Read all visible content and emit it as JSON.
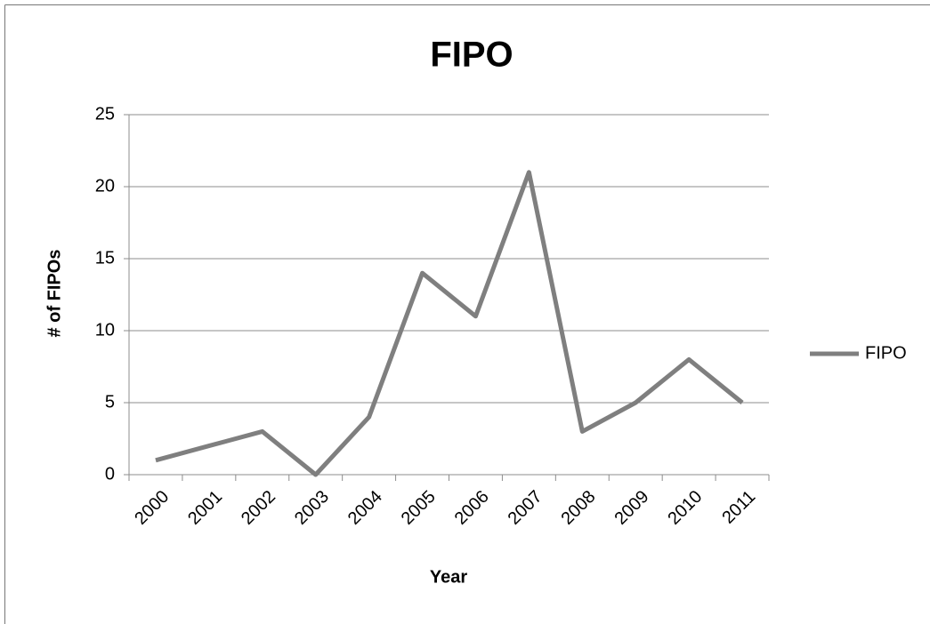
{
  "chart_data": {
    "type": "line",
    "title": "FIPO",
    "x_label": "Year",
    "y_label": "# of FIPOs",
    "categories": [
      "2000",
      "2001",
      "2002",
      "2003",
      "2004",
      "2005",
      "2006",
      "2007",
      "2008",
      "2009",
      "2010",
      "2011"
    ],
    "series": [
      {
        "name": "FIPO",
        "color": "#7f7f7f",
        "values": [
          1,
          2,
          3,
          0,
          4,
          14,
          11,
          21,
          3,
          5,
          8,
          5
        ]
      }
    ],
    "ylim": [
      0,
      25
    ],
    "yticks": [
      0,
      5,
      10,
      15,
      20,
      25
    ],
    "grid": true,
    "legend": "right"
  }
}
